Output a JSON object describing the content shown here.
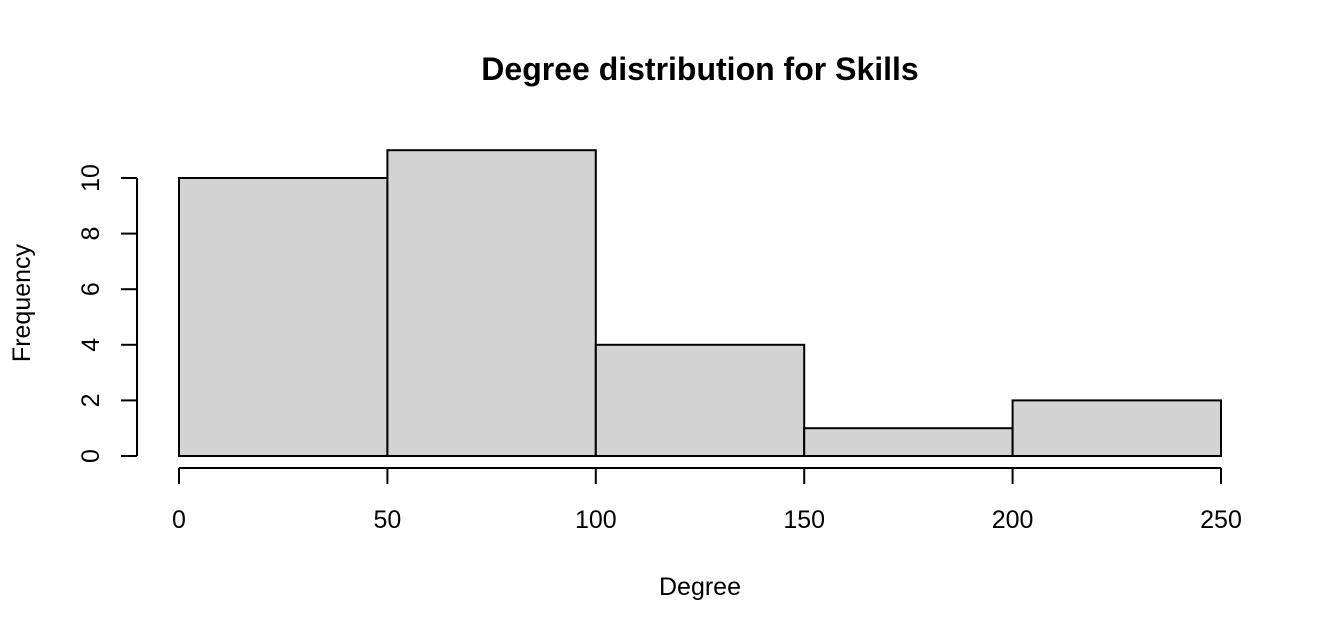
{
  "chart_data": {
    "type": "bar",
    "title": "Degree distribution for Skills",
    "xlabel": "Degree",
    "ylabel": "Frequency",
    "bins": [
      {
        "from": 0,
        "to": 50,
        "count": 10
      },
      {
        "from": 50,
        "to": 100,
        "count": 11
      },
      {
        "from": 100,
        "to": 150,
        "count": 4
      },
      {
        "from": 150,
        "to": 200,
        "count": 1
      },
      {
        "from": 200,
        "to": 250,
        "count": 2
      }
    ],
    "xlim": [
      0,
      250
    ],
    "ylim": [
      0,
      11
    ],
    "x_ticks": [
      0,
      50,
      100,
      150,
      200,
      250
    ],
    "x_tick_labels": [
      "0",
      "50",
      "100",
      "150",
      "200",
      "250"
    ],
    "y_ticks": [
      0,
      2,
      4,
      6,
      8,
      10
    ],
    "y_tick_labels": [
      "0",
      "2",
      "4",
      "6",
      "8",
      "10"
    ],
    "grid": false,
    "bar_color": "#d3d3d3",
    "border_color": "#000000"
  }
}
